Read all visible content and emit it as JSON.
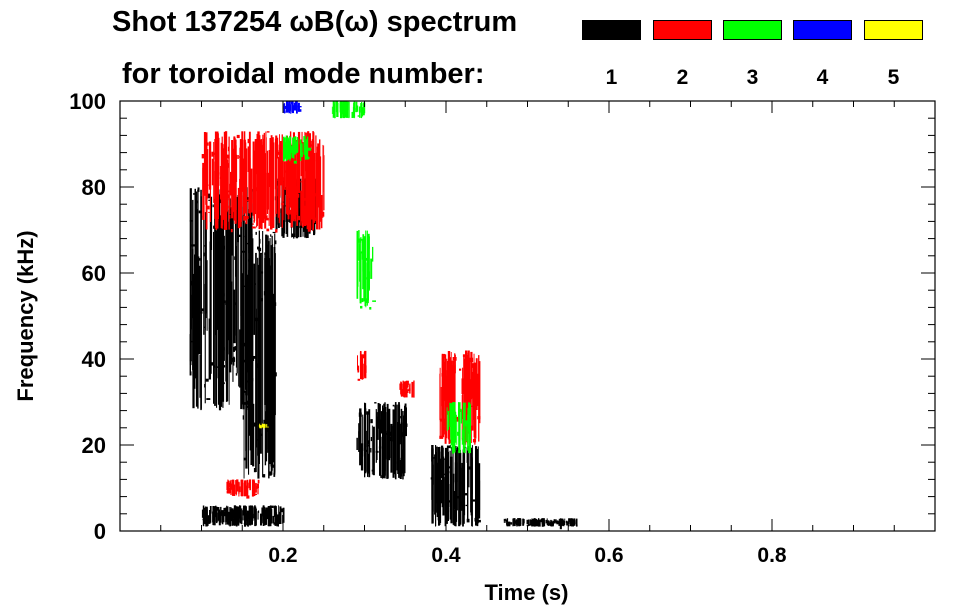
{
  "header": {
    "title_line1": "Shot 137254 ωB(ω) spectrum",
    "title_line2": "for toroidal mode number:"
  },
  "legend": [
    {
      "label": "1",
      "color": "#000000"
    },
    {
      "label": "2",
      "color": "#ff0000"
    },
    {
      "label": "3",
      "color": "#00ff00"
    },
    {
      "label": "4",
      "color": "#0000ff"
    },
    {
      "label": "5",
      "color": "#ffff00"
    }
  ],
  "chart_data": {
    "type": "heatmap",
    "title": "Shot 137254 ωB(ω) spectrum",
    "xlabel": "Time (s)",
    "ylabel": "Frequency (kHz)",
    "xlim": [
      0.0,
      1.0
    ],
    "ylim": [
      0,
      100
    ],
    "xticks": [
      "0.2",
      "0.4",
      "0.6",
      "0.8"
    ],
    "xtick_values": [
      0.2,
      0.4,
      0.6,
      0.8
    ],
    "yticks": [
      "0",
      "20",
      "40",
      "60",
      "80",
      "100"
    ],
    "ytick_values": [
      0,
      20,
      40,
      60,
      80,
      100
    ],
    "grid": false,
    "legend_position": "top-right",
    "series": [
      {
        "name": "1",
        "color": "#000000",
        "regions": [
          {
            "t": [
              0.085,
              0.16
            ],
            "f": [
              28,
              80
            ]
          },
          {
            "t": [
              0.15,
              0.19
            ],
            "f": [
              12,
              70
            ]
          },
          {
            "t": [
              0.19,
              0.24
            ],
            "f": [
              68,
              82
            ]
          },
          {
            "t": [
              0.1,
              0.2
            ],
            "f": [
              1,
              6
            ]
          },
          {
            "t": [
              0.29,
              0.35
            ],
            "f": [
              12,
              30
            ]
          },
          {
            "t": [
              0.38,
              0.44
            ],
            "f": [
              1,
              20
            ]
          },
          {
            "t": [
              0.47,
              0.56
            ],
            "f": [
              1,
              3
            ]
          }
        ]
      },
      {
        "name": "2",
        "color": "#ff0000",
        "regions": [
          {
            "t": [
              0.1,
              0.25
            ],
            "f": [
              70,
              93
            ]
          },
          {
            "t": [
              0.29,
              0.3
            ],
            "f": [
              35,
              42
            ]
          },
          {
            "t": [
              0.34,
              0.36
            ],
            "f": [
              31,
              35
            ]
          },
          {
            "t": [
              0.39,
              0.44
            ],
            "f": [
              20,
              42
            ]
          },
          {
            "t": [
              0.13,
              0.17
            ],
            "f": [
              8,
              12
            ]
          }
        ]
      },
      {
        "name": "3",
        "color": "#00ff00",
        "regions": [
          {
            "t": [
              0.26,
              0.3
            ],
            "f": [
              96,
              100
            ]
          },
          {
            "t": [
              0.29,
              0.31
            ],
            "f": [
              52,
              70
            ]
          },
          {
            "t": [
              0.2,
              0.23
            ],
            "f": [
              86,
              92
            ]
          },
          {
            "t": [
              0.4,
              0.43
            ],
            "f": [
              18,
              30
            ]
          }
        ]
      },
      {
        "name": "4",
        "color": "#0000ff",
        "regions": [
          {
            "t": [
              0.2,
              0.22
            ],
            "f": [
              97,
              100
            ]
          }
        ]
      },
      {
        "name": "5",
        "color": "#ffff00",
        "regions": [
          {
            "t": [
              0.17,
              0.18
            ],
            "f": [
              24,
              25
            ]
          }
        ]
      }
    ]
  }
}
